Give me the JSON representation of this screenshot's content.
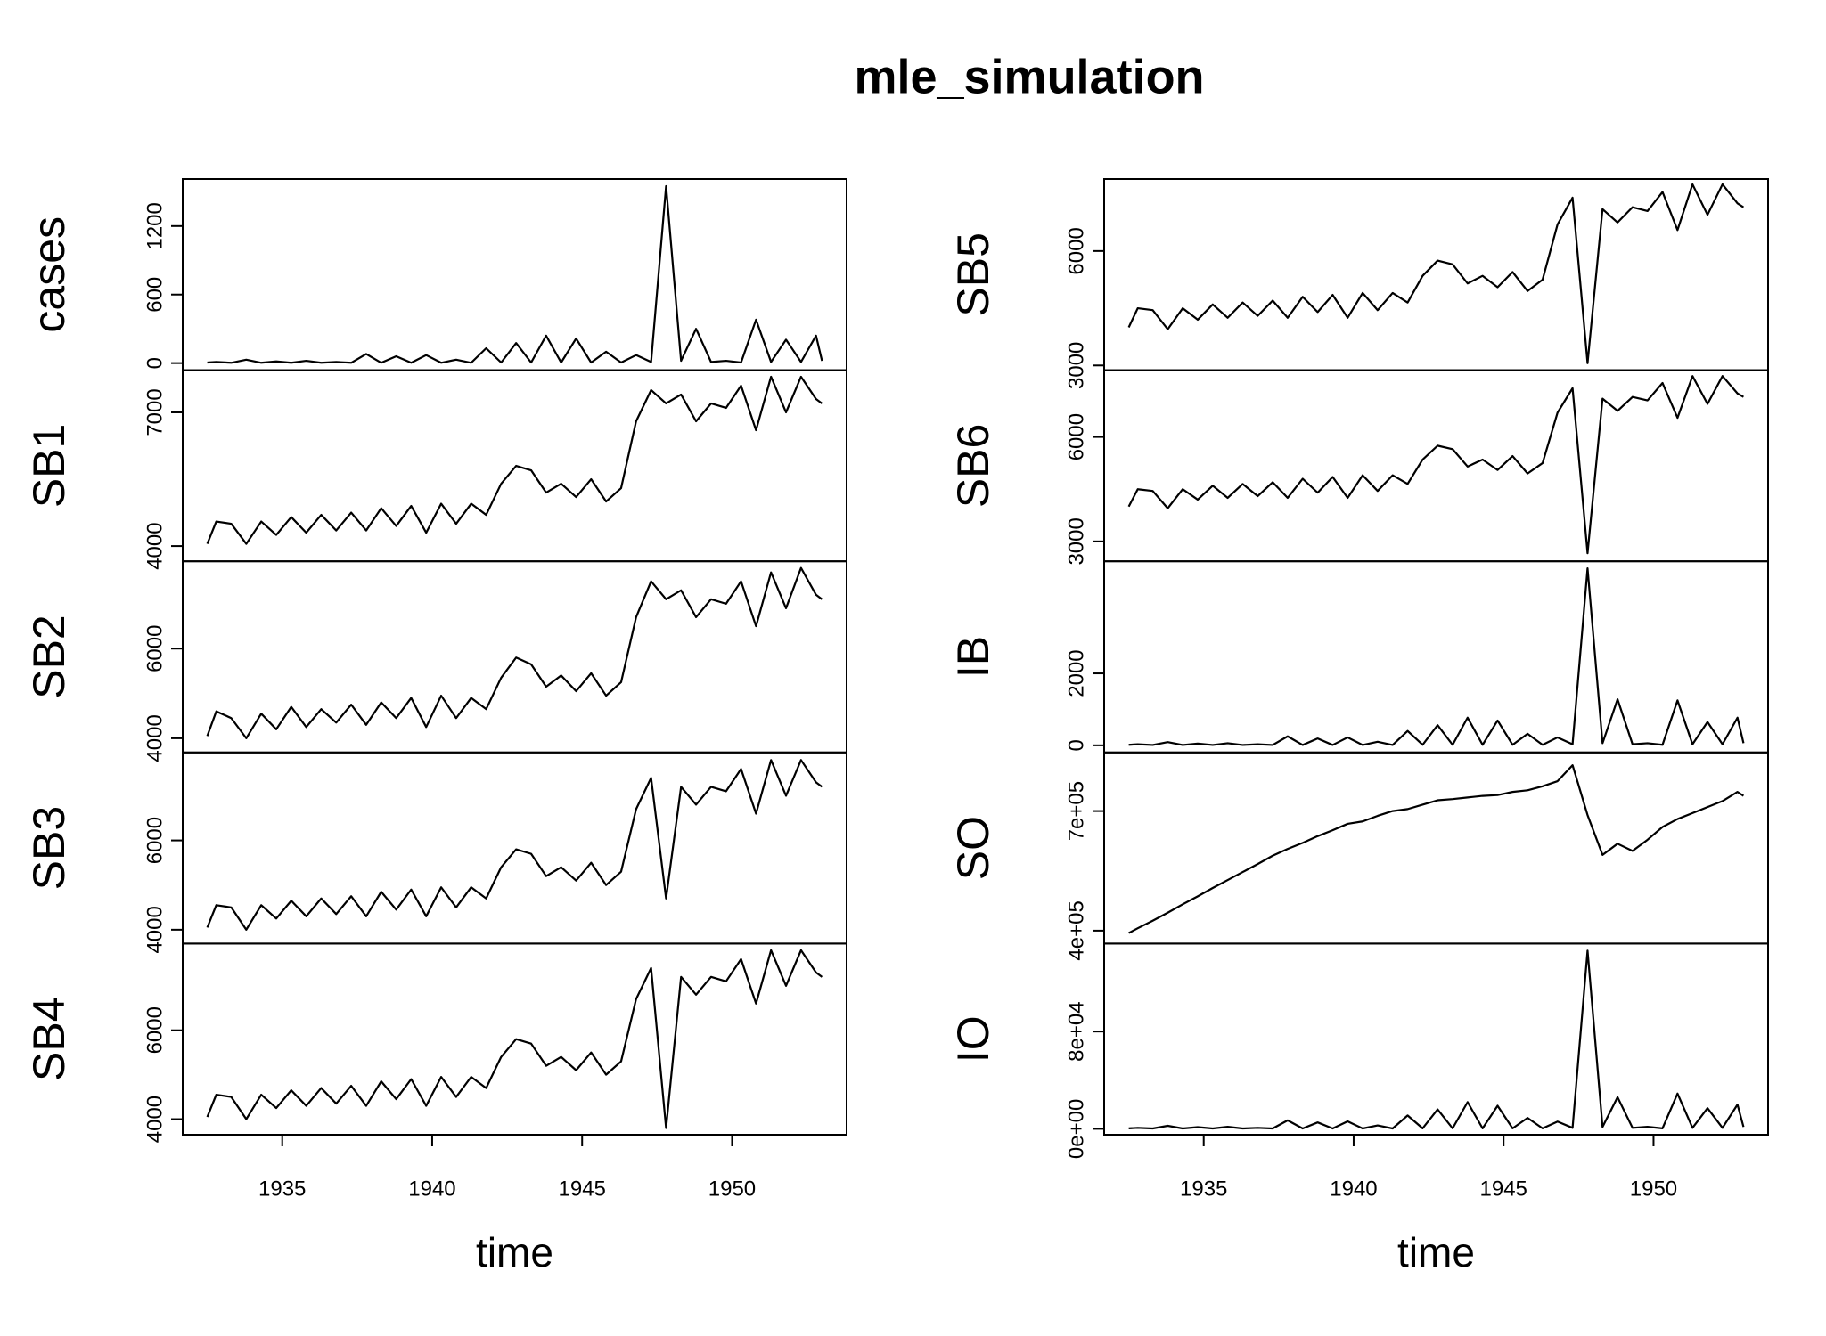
{
  "title": "mle_simulation",
  "chart_data": [
    {
      "type": "line",
      "ylabel": "cases",
      "color": "#000000",
      "xlim": [
        1931.68,
        1953.82
      ],
      "ylim": [
        -62,
        1612
      ],
      "yticks": [
        0,
        600,
        1200
      ],
      "x": [
        1932.5,
        1932.8,
        1933.3,
        1933.8,
        1934.3,
        1934.8,
        1935.3,
        1935.8,
        1936.3,
        1936.8,
        1937.3,
        1937.8,
        1938.3,
        1938.8,
        1939.3,
        1939.8,
        1940.3,
        1940.8,
        1941.3,
        1941.8,
        1942.3,
        1942.8,
        1943.3,
        1943.8,
        1944.3,
        1944.8,
        1945.3,
        1945.8,
        1946.3,
        1946.8,
        1947.3,
        1947.8,
        1948.3,
        1948.8,
        1949.3,
        1949.8,
        1950.3,
        1950.8,
        1951.3,
        1951.8,
        1952.3,
        1952.8,
        1953.0
      ],
      "values": [
        5,
        10,
        3,
        30,
        3,
        15,
        3,
        20,
        3,
        10,
        3,
        80,
        3,
        60,
        3,
        70,
        3,
        30,
        3,
        130,
        5,
        175,
        5,
        240,
        5,
        215,
        5,
        100,
        5,
        70,
        10,
        1550,
        20,
        300,
        10,
        20,
        5,
        380,
        10,
        205,
        10,
        240,
        20
      ]
    },
    {
      "type": "line",
      "ylabel": "SB1",
      "color": "#000000",
      "xlim": [
        1931.68,
        1953.82
      ],
      "ylim": [
        3658,
        7947
      ],
      "yticks": [
        4000,
        7000
      ],
      "x": [
        1932.5,
        1932.8,
        1933.3,
        1933.8,
        1934.3,
        1934.8,
        1935.3,
        1935.8,
        1936.3,
        1936.8,
        1937.3,
        1937.8,
        1938.3,
        1938.8,
        1939.3,
        1939.8,
        1940.3,
        1940.8,
        1941.3,
        1941.8,
        1942.3,
        1942.8,
        1943.3,
        1943.8,
        1944.3,
        1944.8,
        1945.3,
        1945.8,
        1946.3,
        1946.8,
        1947.3,
        1947.8,
        1948.3,
        1948.8,
        1949.3,
        1949.8,
        1950.3,
        1950.8,
        1951.3,
        1951.8,
        1952.3,
        1952.8,
        1953.0
      ],
      "values": [
        4050,
        4550,
        4500,
        4050,
        4550,
        4250,
        4650,
        4300,
        4700,
        4350,
        4750,
        4350,
        4850,
        4450,
        4900,
        4300,
        4950,
        4500,
        4950,
        4700,
        5400,
        5800,
        5700,
        5200,
        5400,
        5100,
        5500,
        5000,
        5300,
        6800,
        7500,
        7200,
        7400,
        6800,
        7200,
        7100,
        7600,
        6600,
        7800,
        7000,
        7800,
        7300,
        7200
      ]
    },
    {
      "type": "line",
      "ylabel": "SB2",
      "color": "#000000",
      "xlim": [
        1931.68,
        1953.82
      ],
      "ylim": [
        3684,
        7947
      ],
      "yticks": [
        4000,
        6000
      ],
      "x": [
        1932.5,
        1932.8,
        1933.3,
        1933.8,
        1934.3,
        1934.8,
        1935.3,
        1935.8,
        1936.3,
        1936.8,
        1937.3,
        1937.8,
        1938.3,
        1938.8,
        1939.3,
        1939.8,
        1940.3,
        1940.8,
        1941.3,
        1941.8,
        1942.3,
        1942.8,
        1943.3,
        1943.8,
        1944.3,
        1944.8,
        1945.3,
        1945.8,
        1946.3,
        1946.8,
        1947.3,
        1947.8,
        1948.3,
        1948.8,
        1949.3,
        1949.8,
        1950.3,
        1950.8,
        1951.3,
        1951.8,
        1952.3,
        1952.8,
        1953.0
      ],
      "values": [
        4050,
        4600,
        4450,
        4000,
        4550,
        4200,
        4700,
        4250,
        4650,
        4350,
        4750,
        4300,
        4800,
        4450,
        4900,
        4250,
        4950,
        4450,
        4900,
        4650,
        5350,
        5800,
        5650,
        5150,
        5400,
        5050,
        5450,
        4950,
        5250,
        6700,
        7500,
        7100,
        7300,
        6700,
        7100,
        7000,
        7500,
        6500,
        7700,
        6900,
        7800,
        7200,
        7100
      ]
    },
    {
      "type": "line",
      "ylabel": "SB3",
      "color": "#000000",
      "xlim": [
        1931.68,
        1953.82
      ],
      "ylim": [
        3690,
        7970
      ],
      "yticks": [
        4000,
        6000
      ],
      "x": [
        1932.5,
        1932.8,
        1933.3,
        1933.8,
        1934.3,
        1934.8,
        1935.3,
        1935.8,
        1936.3,
        1936.8,
        1937.3,
        1937.8,
        1938.3,
        1938.8,
        1939.3,
        1939.8,
        1940.3,
        1940.8,
        1941.3,
        1941.8,
        1942.3,
        1942.8,
        1943.3,
        1943.8,
        1944.3,
        1944.8,
        1945.3,
        1945.8,
        1946.3,
        1946.8,
        1947.3,
        1947.8,
        1948.3,
        1948.8,
        1949.3,
        1949.8,
        1950.3,
        1950.8,
        1951.3,
        1951.8,
        1952.3,
        1952.8,
        1953.0
      ],
      "values": [
        4050,
        4550,
        4500,
        4000,
        4550,
        4250,
        4650,
        4300,
        4700,
        4350,
        4750,
        4300,
        4850,
        4450,
        4900,
        4300,
        4950,
        4500,
        4950,
        4700,
        5400,
        5800,
        5700,
        5200,
        5400,
        5100,
        5500,
        5000,
        5300,
        6700,
        7400,
        4700,
        7200,
        6800,
        7200,
        7100,
        7600,
        6600,
        7800,
        7000,
        7800,
        7300,
        7200
      ]
    },
    {
      "type": "line",
      "ylabel": "SB4",
      "color": "#000000",
      "xlim": [
        1931.68,
        1953.82
      ],
      "ylim": [
        3650,
        7950
      ],
      "yticks": [
        4000,
        6000
      ],
      "x": [
        1932.5,
        1932.8,
        1933.3,
        1933.8,
        1934.3,
        1934.8,
        1935.3,
        1935.8,
        1936.3,
        1936.8,
        1937.3,
        1937.8,
        1938.3,
        1938.8,
        1939.3,
        1939.8,
        1940.3,
        1940.8,
        1941.3,
        1941.8,
        1942.3,
        1942.8,
        1943.3,
        1943.8,
        1944.3,
        1944.8,
        1945.3,
        1945.8,
        1946.3,
        1946.8,
        1947.3,
        1947.8,
        1948.3,
        1948.8,
        1949.3,
        1949.8,
        1950.3,
        1950.8,
        1951.3,
        1951.8,
        1952.3,
        1952.8,
        1953.0
      ],
      "values": [
        4050,
        4550,
        4500,
        4000,
        4550,
        4250,
        4650,
        4300,
        4700,
        4350,
        4750,
        4300,
        4850,
        4450,
        4900,
        4300,
        4950,
        4500,
        4950,
        4700,
        5400,
        5800,
        5700,
        5200,
        5400,
        5100,
        5500,
        5000,
        5300,
        6700,
        7400,
        3800,
        7200,
        6800,
        7200,
        7100,
        7600,
        6600,
        7800,
        7000,
        7800,
        7300,
        7200
      ],
      "xticks": [
        1935,
        1940,
        1945,
        1950
      ],
      "xlabel": "time"
    },
    {
      "type": "line",
      "ylabel": "SB5",
      "color": "#000000",
      "xlim": [
        1931.68,
        1953.82
      ],
      "ylim": [
        2876,
        7889
      ],
      "yticks": [
        3000,
        6000
      ],
      "x": [
        1932.5,
        1932.8,
        1933.3,
        1933.8,
        1934.3,
        1934.8,
        1935.3,
        1935.8,
        1936.3,
        1936.8,
        1937.3,
        1937.8,
        1938.3,
        1938.8,
        1939.3,
        1939.8,
        1940.3,
        1940.8,
        1941.3,
        1941.8,
        1942.3,
        1942.8,
        1943.3,
        1943.8,
        1944.3,
        1944.8,
        1945.3,
        1945.8,
        1946.3,
        1946.8,
        1947.3,
        1947.8,
        1948.3,
        1948.8,
        1949.3,
        1949.8,
        1950.3,
        1950.8,
        1951.3,
        1951.8,
        1952.3,
        1952.8,
        1953.0
      ],
      "values": [
        4000,
        4500,
        4450,
        3950,
        4500,
        4200,
        4600,
        4250,
        4650,
        4300,
        4700,
        4250,
        4800,
        4400,
        4850,
        4250,
        4900,
        4450,
        4900,
        4650,
        5350,
        5750,
        5650,
        5150,
        5350,
        5050,
        5450,
        4950,
        5250,
        6700,
        7400,
        3060,
        7100,
        6750,
        7150,
        7050,
        7550,
        6550,
        7750,
        6950,
        7750,
        7250,
        7150
      ]
    },
    {
      "type": "line",
      "ylabel": "SB6",
      "color": "#000000",
      "xlim": [
        1931.68,
        1953.82
      ],
      "ylim": [
        2428,
        7919
      ],
      "yticks": [
        3000,
        6000
      ],
      "x": [
        1932.5,
        1932.8,
        1933.3,
        1933.8,
        1934.3,
        1934.8,
        1935.3,
        1935.8,
        1936.3,
        1936.8,
        1937.3,
        1937.8,
        1938.3,
        1938.8,
        1939.3,
        1939.8,
        1940.3,
        1940.8,
        1941.3,
        1941.8,
        1942.3,
        1942.8,
        1943.3,
        1943.8,
        1944.3,
        1944.8,
        1945.3,
        1945.8,
        1946.3,
        1946.8,
        1947.3,
        1947.8,
        1948.3,
        1948.8,
        1949.3,
        1949.8,
        1950.3,
        1950.8,
        1951.3,
        1951.8,
        1952.3,
        1952.8,
        1953.0
      ],
      "values": [
        4000,
        4500,
        4450,
        3950,
        4500,
        4200,
        4600,
        4250,
        4650,
        4300,
        4700,
        4250,
        4800,
        4400,
        4850,
        4250,
        4900,
        4450,
        4900,
        4650,
        5350,
        5750,
        5650,
        5150,
        5350,
        5050,
        5450,
        4950,
        5250,
        6700,
        7400,
        2660,
        7100,
        6750,
        7150,
        7050,
        7550,
        6550,
        7750,
        6950,
        7750,
        7250,
        7150
      ]
    },
    {
      "type": "line",
      "ylabel": "IB",
      "color": "#000000",
      "xlim": [
        1931.68,
        1953.82
      ],
      "ylim": [
        -197,
        5115
      ],
      "yticks": [
        0,
        2000
      ],
      "x": [
        1932.5,
        1932.8,
        1933.3,
        1933.8,
        1934.3,
        1934.8,
        1935.3,
        1935.8,
        1936.3,
        1936.8,
        1937.3,
        1937.8,
        1938.3,
        1938.8,
        1939.3,
        1939.8,
        1940.3,
        1940.8,
        1941.3,
        1941.8,
        1942.3,
        1942.8,
        1943.3,
        1943.8,
        1944.3,
        1944.8,
        1945.3,
        1945.8,
        1946.3,
        1946.8,
        1947.3,
        1947.8,
        1948.3,
        1948.8,
        1949.3,
        1949.8,
        1950.3,
        1950.8,
        1951.3,
        1951.8,
        1952.3,
        1952.8,
        1953.0
      ],
      "values": [
        15,
        30,
        10,
        90,
        10,
        50,
        10,
        60,
        10,
        30,
        10,
        250,
        10,
        190,
        10,
        220,
        10,
        100,
        10,
        400,
        15,
        560,
        15,
        770,
        15,
        690,
        15,
        320,
        15,
        220,
        30,
        4920,
        60,
        1280,
        30,
        60,
        15,
        1250,
        30,
        650,
        30,
        770,
        60
      ]
    },
    {
      "type": "line",
      "ylabel": "SO",
      "color": "#000000",
      "xlim": [
        1931.68,
        1953.82
      ],
      "ylim": [
        367600,
        847000
      ],
      "yticks": [
        {
          "value": 400000,
          "label": "4e+05"
        },
        {
          "value": 700000,
          "label": "7e+05"
        }
      ],
      "x": [
        1932.5,
        1932.8,
        1933.3,
        1933.8,
        1934.3,
        1934.8,
        1935.3,
        1935.8,
        1936.3,
        1936.8,
        1937.3,
        1937.8,
        1938.3,
        1938.8,
        1939.3,
        1939.8,
        1940.3,
        1940.8,
        1941.3,
        1941.8,
        1942.3,
        1942.8,
        1943.3,
        1943.8,
        1944.3,
        1944.8,
        1945.3,
        1945.8,
        1946.3,
        1946.8,
        1947.3,
        1947.8,
        1948.3,
        1948.8,
        1949.3,
        1949.8,
        1950.3,
        1950.8,
        1951.3,
        1951.8,
        1952.3,
        1952.8,
        1953.0
      ],
      "values": [
        394000,
        406000,
        425000,
        445000,
        466000,
        486000,
        507000,
        527000,
        547000,
        567000,
        588000,
        605000,
        620000,
        637000,
        652000,
        668000,
        674000,
        688000,
        700000,
        705000,
        716000,
        727000,
        730000,
        734000,
        738000,
        740000,
        748000,
        752000,
        762000,
        775000,
        815000,
        690000,
        590000,
        618000,
        600000,
        628000,
        660000,
        680000,
        695000,
        710000,
        725000,
        748000,
        738000
      ]
    },
    {
      "type": "line",
      "ylabel": "IO",
      "color": "#000000",
      "xlim": [
        1931.68,
        1953.82
      ],
      "ylim": [
        -4819,
        152290
      ],
      "yticks": [
        {
          "value": 0,
          "label": "0e+00"
        },
        {
          "value": 80000,
          "label": "8e+04"
        }
      ],
      "x": [
        1932.5,
        1932.8,
        1933.3,
        1933.8,
        1934.3,
        1934.8,
        1935.3,
        1935.8,
        1936.3,
        1936.8,
        1937.3,
        1937.8,
        1938.3,
        1938.8,
        1939.3,
        1939.8,
        1940.3,
        1940.8,
        1941.3,
        1941.8,
        1942.3,
        1942.8,
        1943.3,
        1943.8,
        1944.3,
        1944.8,
        1945.3,
        1945.8,
        1946.3,
        1946.8,
        1947.3,
        1947.8,
        1948.3,
        1948.8,
        1949.3,
        1949.8,
        1950.3,
        1950.8,
        1951.3,
        1951.8,
        1952.3,
        1952.8,
        1953.0
      ],
      "values": [
        400,
        800,
        300,
        2500,
        300,
        1400,
        300,
        1700,
        300,
        800,
        300,
        7000,
        300,
        5300,
        300,
        6200,
        300,
        2800,
        300,
        11000,
        400,
        16000,
        400,
        22000,
        400,
        19000,
        400,
        9000,
        400,
        6000,
        800,
        146500,
        1600,
        26000,
        800,
        1700,
        400,
        29000,
        800,
        17000,
        800,
        20000,
        1600
      ],
      "xticks": [
        1935,
        1940,
        1945,
        1950
      ],
      "xlabel": "time"
    }
  ]
}
